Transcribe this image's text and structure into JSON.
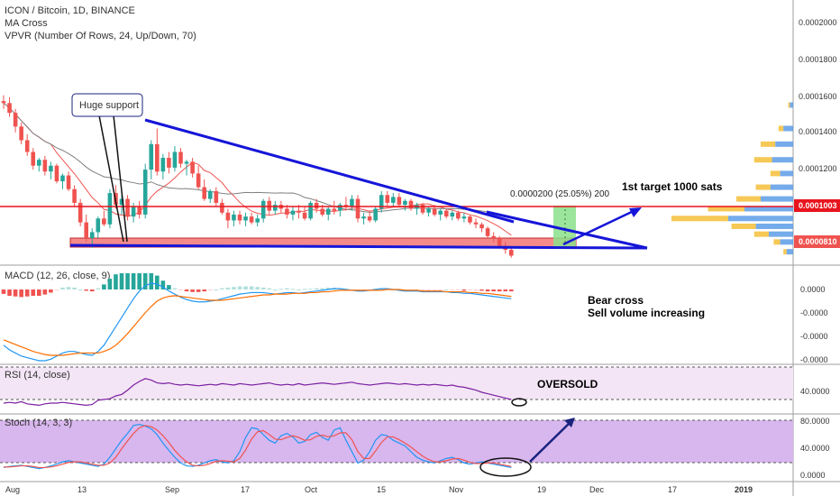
{
  "header": {
    "symbol_title": "ICON / Bitcoin, 1D, BINANCE",
    "indicator_ma": "MA Cross",
    "indicator_vpvr": "VPVR (Number Of Rows, 24, Up/Down, 70)"
  },
  "panes": {
    "macd_title": "MACD (12, 26, close, 9)",
    "rsi_title": "RSI (14, close)",
    "stoch_title": "Stoch (14, 3, 3)"
  },
  "annotations": {
    "huge_support": "Huge support",
    "target": "1st target 1000 sats",
    "measure": "0.0000200 (25.05%) 200",
    "bear_cross": "Bear cross",
    "sell_volume": "Sell volume increasing",
    "oversold": "OVERSOLD"
  },
  "axes": {
    "price_ticks": [
      "0.0002000",
      "0.0001800",
      "0.0001600",
      "0.0001400",
      "0.0001200"
    ],
    "price_badge_current": "0.0001003",
    "price_badge_last": "0.0000810",
    "macd_ticks": [
      "0.0000",
      "-0.0000",
      "-0.0000",
      "-0.0000"
    ],
    "rsi_ticks": [
      "40.0000"
    ],
    "stoch_ticks": [
      "80.0000",
      "40.0000",
      "0.0000"
    ],
    "x_ticks": [
      "Aug",
      "13",
      "Sep",
      "17",
      "Oct",
      "15",
      "Nov",
      "19",
      "Dec",
      "17",
      "2019"
    ]
  },
  "colors": {
    "up": "#26a69a",
    "down": "#ef5350",
    "trendline": "#1515d8",
    "support_zone": "#f08080",
    "horizontal": "#e8141e",
    "badge_current": "#e8141e",
    "badge_last": "#ef5350",
    "macd_line": "#2196f3",
    "signal_line": "#ff6d00",
    "rsi_line": "#7b1fa2",
    "rsi_band": "#f3e5f5",
    "stoch_band": "#d8b6ee",
    "ma_fast": "#ef5350",
    "ma_slow": "#808080"
  },
  "chart_data": {
    "type": "candlestick",
    "price_range": [
      7.8e-05,
      0.000208
    ],
    "x_categories": [
      "Aug",
      "13",
      "Sep",
      "17",
      "Oct",
      "15",
      "Nov",
      "19",
      "Dec",
      "17",
      "2019"
    ],
    "candles": [
      [
        0.00016,
        0.000163,
        0.000156,
        0.000159
      ],
      [
        0.000159,
        0.000162,
        0.000152,
        0.000154
      ],
      [
        0.000154,
        0.000156,
        0.000144,
        0.000147
      ],
      [
        0.000147,
        0.000149,
        0.000138,
        0.00014
      ],
      [
        0.00014,
        0.000143,
        0.000132,
        0.000134
      ],
      [
        0.000134,
        0.000136,
        0.000125,
        0.000127
      ],
      [
        0.000127,
        0.000131,
        0.000124,
        0.00013
      ],
      [
        0.00013,
        0.000132,
        0.000122,
        0.000124
      ],
      [
        0.000124,
        0.000129,
        0.00012,
        0.000127
      ],
      [
        0.000127,
        0.000128,
        0.000118,
        0.000119
      ],
      [
        0.000119,
        0.000123,
        0.000115,
        0.000122
      ],
      [
        0.000122,
        0.000124,
        0.000114,
        0.000115
      ],
      [
        0.000115,
        0.000117,
        0.000106,
        0.000108
      ],
      [
        0.000108,
        0.00011,
        9.6e-05,
        9.8e-05
      ],
      [
        9.8e-05,
        0.000102,
        8.8e-05,
        9e-05
      ],
      [
        9e-05,
        9.5e-05,
        8.5e-05,
        9.3e-05
      ],
      [
        9.3e-05,
        0.000101,
        9e-05,
        0.0001
      ],
      [
        0.0001,
        0.000104,
        9.6e-05,
        9.7e-05
      ],
      [
        9.7e-05,
        0.000115,
        9.5e-05,
        0.000113
      ],
      [
        0.000113,
        0.000117,
        0.000105,
        0.000107
      ],
      [
        0.000107,
        0.000112,
        0.000102,
        0.00011
      ],
      [
        0.00011,
        0.000112,
        9.9e-05,
        0.000101
      ],
      [
        0.000101,
        0.000108,
        9.8e-05,
        0.000106
      ],
      [
        0.000106,
        0.000109,
        0.0001,
        0.000102
      ],
      [
        0.000102,
        0.000128,
        0.0001,
        0.000125
      ],
      [
        0.000125,
        0.00014,
        0.00012,
        0.000138
      ],
      [
        0.000138,
        0.000146,
        0.000122,
        0.000124
      ],
      [
        0.000124,
        0.000133,
        0.00012,
        0.000131
      ],
      [
        0.000131,
        0.000134,
        0.000123,
        0.000126
      ],
      [
        0.000126,
        0.000137,
        0.000124,
        0.000134
      ],
      [
        0.000134,
        0.000136,
        0.000126,
        0.000128
      ],
      [
        0.000128,
        0.00013,
        0.000122,
        0.000129
      ],
      [
        0.000129,
        0.000131,
        0.000121,
        0.000123
      ],
      [
        0.000123,
        0.000127,
        0.000115,
        0.000116
      ],
      [
        0.000116,
        0.00012,
        0.000109,
        0.00011
      ],
      [
        0.00011,
        0.000115,
        0.000108,
        0.000114
      ],
      [
        0.000114,
        0.000116,
        0.000106,
        0.000108
      ],
      [
        0.000108,
        0.00011,
        0.000102,
        0.000103
      ],
      [
        0.000103,
        0.000105,
        9.5e-05,
        9.9e-05
      ],
      [
        9.9e-05,
        0.000104,
        9.6e-05,
        0.000102
      ],
      [
        0.000102,
        0.000104,
        9.7e-05,
        9.9e-05
      ],
      [
        9.9e-05,
        0.000103,
        9.6e-05,
        0.000101
      ],
      [
        0.000101,
        0.000103,
        9.7e-05,
        9.8e-05
      ],
      [
        9.8e-05,
        0.000102,
        9.6e-05,
        0.0001
      ],
      [
        0.0001,
        0.00011,
        9.8e-05,
        0.000109
      ],
      [
        0.000109,
        0.000111,
        0.000102,
        0.000104
      ],
      [
        0.000104,
        0.000109,
        0.000102,
        0.000107
      ],
      [
        0.000107,
        0.000109,
        0.000103,
        0.000105
      ],
      [
        0.000105,
        0.000107,
        0.0001,
        0.000102
      ],
      [
        0.000102,
        0.000106,
        9.9e-05,
        0.000104
      ],
      [
        0.000104,
        0.000107,
        0.0001,
        0.000103
      ],
      [
        0.000103,
        0.000106,
        9.9e-05,
        0.0001
      ],
      [
        0.0001,
        0.000109,
        9.9e-05,
        0.000108
      ],
      [
        0.000108,
        0.00011,
        0.000103,
        0.000105
      ],
      [
        0.000105,
        0.000107,
        0.000101,
        0.000102
      ],
      [
        0.000102,
        0.000106,
        9.9e-05,
        0.000105
      ],
      [
        0.000105,
        0.000109,
        0.000102,
        0.000104
      ],
      [
        0.000104,
        0.000108,
        0.000101,
        0.000107
      ],
      [
        0.000107,
        0.000111,
        0.000104,
        0.000106
      ],
      [
        0.000106,
        0.000112,
        0.000104,
        0.00011
      ],
      [
        0.00011,
        0.000112,
        9.8e-05,
        0.0001
      ],
      [
        0.0001,
        0.000103,
        9.7e-05,
        0.000101
      ],
      [
        0.000101,
        0.000104,
        9.8e-05,
        9.9e-05
      ],
      [
        9.9e-05,
        0.000106,
        9.8e-05,
        0.000105
      ],
      [
        0.000105,
        0.000114,
        0.000103,
        0.000112
      ],
      [
        0.000112,
        0.000114,
        0.000106,
        0.000108
      ],
      [
        0.000108,
        0.000113,
        0.000106,
        0.000111
      ],
      [
        0.000111,
        0.000113,
        0.000106,
        0.000107
      ],
      [
        0.000107,
        0.00011,
        0.000104,
        0.000109
      ],
      [
        0.000109,
        0.00011,
        0.000104,
        0.000105
      ],
      [
        0.000105,
        0.000108,
        0.000102,
        0.000107
      ],
      [
        0.000107,
        0.000108,
        0.000102,
        0.000103
      ],
      [
        0.000103,
        0.000106,
        0.000101,
        0.000105
      ],
      [
        0.000105,
        0.000107,
        0.000101,
        0.000102
      ],
      [
        0.000102,
        0.000105,
        9.9e-05,
        0.000104
      ],
      [
        0.000104,
        0.000105,
        0.0001,
        0.000101
      ],
      [
        0.000101,
        0.000104,
        9.9e-05,
        0.000103
      ],
      [
        0.000103,
        0.000104,
        9.9e-05,
        0.0001
      ],
      [
        0.0001,
        0.000103,
        9.8e-05,
        0.000101
      ],
      [
        0.000101,
        0.000102,
        9.7e-05,
        9.8e-05
      ],
      [
        9.8e-05,
        0.0001,
        9.5e-05,
        9.7e-05
      ],
      [
        9.7e-05,
        9.8e-05,
        9.3e-05,
        9.5e-05
      ],
      [
        9.5e-05,
        9.6e-05,
        9e-05,
        9.1e-05
      ],
      [
        9.1e-05,
        9.3e-05,
        8.8e-05,
        9e-05
      ],
      [
        9e-05,
        9.1e-05,
        8.5e-05,
        8.6e-05
      ],
      [
        8.6e-05,
        8.8e-05,
        8.2e-05,
        8.4e-05
      ],
      [
        8.4e-05,
        8.5e-05,
        8e-05,
        8.1e-05
      ]
    ],
    "rsi": [
      30,
      31,
      30,
      32,
      29,
      28,
      27,
      29,
      30,
      30,
      31,
      30,
      29,
      28,
      27,
      28,
      34,
      35,
      36,
      40,
      42,
      48,
      55,
      60,
      64,
      62,
      58,
      57,
      58,
      56,
      55,
      56,
      55,
      54,
      55,
      56,
      55,
      57,
      56,
      55,
      57,
      56,
      55,
      56,
      57,
      58,
      56,
      55,
      56,
      55,
      57,
      55,
      56,
      57,
      58,
      57,
      56,
      57,
      58,
      59,
      57,
      56,
      55,
      56,
      57,
      58,
      57,
      56,
      57,
      56,
      55,
      56,
      55,
      56,
      55,
      54,
      55,
      53,
      52,
      50,
      48,
      45,
      43,
      41,
      39,
      37,
      35
    ],
    "stoch_k": [
      12,
      14,
      15,
      16,
      14,
      12,
      10,
      12,
      15,
      18,
      22,
      24,
      22,
      20,
      18,
      16,
      14,
      18,
      30,
      45,
      60,
      72,
      86,
      88,
      85,
      80,
      70,
      55,
      42,
      30,
      20,
      15,
      14,
      16,
      20,
      24,
      26,
      22,
      20,
      24,
      40,
      65,
      82,
      80,
      70,
      60,
      55,
      68,
      72,
      66,
      55,
      58,
      70,
      74,
      65,
      60,
      78,
      82,
      60,
      40,
      20,
      25,
      40,
      60,
      70,
      68,
      60,
      55,
      50,
      40,
      30,
      25,
      22,
      20,
      24,
      28,
      30,
      26,
      20,
      18,
      20,
      22,
      20,
      18,
      16,
      14,
      12
    ],
    "stoch_d": [
      13,
      13,
      14,
      15,
      15,
      14,
      12,
      12,
      13,
      15,
      18,
      21,
      22,
      22,
      20,
      18,
      16,
      16,
      20,
      30,
      45,
      59,
      72,
      82,
      86,
      84,
      78,
      68,
      56,
      42,
      31,
      22,
      16,
      15,
      16,
      19,
      23,
      24,
      23,
      22,
      28,
      43,
      62,
      75,
      77,
      70,
      62,
      61,
      65,
      68,
      65,
      60,
      61,
      67,
      69,
      66,
      68,
      73,
      73,
      61,
      40,
      28,
      28,
      41,
      56,
      66,
      66,
      61,
      55,
      48,
      40,
      32,
      26,
      22,
      22,
      24,
      27,
      28,
      25,
      21,
      19,
      19,
      20,
      20,
      18,
      16,
      14
    ],
    "macd": [
      -0.72,
      -0.78,
      -0.82,
      -0.86,
      -0.88,
      -0.9,
      -0.92,
      -0.92,
      -0.9,
      -0.86,
      -0.82,
      -0.8,
      -0.8,
      -0.82,
      -0.84,
      -0.85,
      -0.8,
      -0.72,
      -0.6,
      -0.48,
      -0.36,
      -0.24,
      -0.12,
      -0.02,
      0.05,
      0.08,
      0.07,
      0.03,
      -0.02,
      -0.06,
      -0.1,
      -0.13,
      -0.15,
      -0.16,
      -0.16,
      -0.15,
      -0.14,
      -0.12,
      -0.1,
      -0.08,
      -0.06,
      -0.05,
      -0.04,
      -0.04,
      -0.04,
      -0.05,
      -0.06,
      -0.05,
      -0.04,
      -0.04,
      -0.05,
      -0.04,
      -0.03,
      -0.02,
      -0.01,
      0.0,
      0.01,
      0.01,
      0.0,
      -0.01,
      -0.02,
      -0.02,
      -0.01,
      0.0,
      0.01,
      0.01,
      0.0,
      -0.01,
      -0.02,
      -0.02,
      -0.02,
      -0.03,
      -0.03,
      -0.03,
      -0.03,
      -0.03,
      -0.04,
      -0.04,
      -0.05,
      -0.05,
      -0.06,
      -0.07,
      -0.08,
      -0.09,
      -0.1,
      -0.11,
      -0.12
    ],
    "signal": [
      -0.65,
      -0.68,
      -0.71,
      -0.74,
      -0.77,
      -0.8,
      -0.82,
      -0.84,
      -0.85,
      -0.85,
      -0.85,
      -0.84,
      -0.83,
      -0.82,
      -0.82,
      -0.82,
      -0.82,
      -0.8,
      -0.77,
      -0.72,
      -0.65,
      -0.57,
      -0.48,
      -0.39,
      -0.3,
      -0.22,
      -0.15,
      -0.11,
      -0.09,
      -0.08,
      -0.09,
      -0.1,
      -0.11,
      -0.12,
      -0.13,
      -0.14,
      -0.14,
      -0.14,
      -0.13,
      -0.12,
      -0.11,
      -0.1,
      -0.09,
      -0.08,
      -0.07,
      -0.07,
      -0.06,
      -0.06,
      -0.06,
      -0.05,
      -0.05,
      -0.05,
      -0.04,
      -0.04,
      -0.03,
      -0.03,
      -0.02,
      -0.01,
      -0.01,
      -0.01,
      -0.01,
      -0.01,
      -0.01,
      -0.01,
      -0.01,
      0.0,
      0.0,
      0.0,
      -0.01,
      -0.01,
      -0.01,
      -0.02,
      -0.02,
      -0.02,
      -0.02,
      -0.03,
      -0.03,
      -0.03,
      -0.03,
      -0.04,
      -0.04,
      -0.05,
      -0.05,
      -0.06,
      -0.07,
      -0.08,
      -0.09
    ],
    "vpvr_rows": [
      {
        "price": 0.000158,
        "up": 4,
        "down": 2
      },
      {
        "price": 0.000146,
        "up": 12,
        "down": 6
      },
      {
        "price": 0.000138,
        "up": 22,
        "down": 18
      },
      {
        "price": 0.00013,
        "up": 26,
        "down": 22
      },
      {
        "price": 0.000123,
        "up": 16,
        "down": 12
      },
      {
        "price": 0.000116,
        "up": 28,
        "down": 18
      },
      {
        "price": 0.00011,
        "up": 40,
        "down": 30
      },
      {
        "price": 0.000105,
        "up": 60,
        "down": 45
      },
      {
        "price": 0.0001,
        "up": 80,
        "down": 70
      },
      {
        "price": 9.6e-05,
        "up": 46,
        "down": 30
      },
      {
        "price": 9.2e-05,
        "up": 30,
        "down": 18
      },
      {
        "price": 8.8e-05,
        "up": 16,
        "down": 8
      },
      {
        "price": 8.3e-05,
        "up": 8,
        "down": 4
      }
    ]
  }
}
